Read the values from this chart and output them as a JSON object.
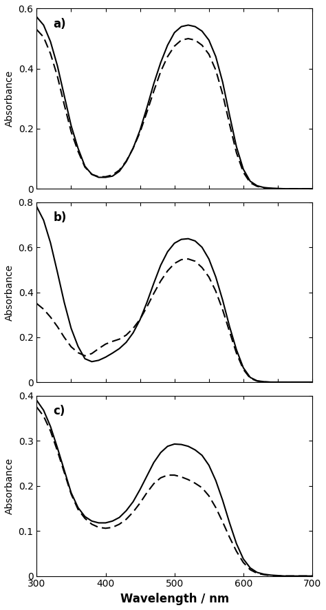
{
  "panels": [
    {
      "label": "a)",
      "ylim": [
        0,
        0.6
      ],
      "yticks": [
        0,
        0.2,
        0.4,
        0.6
      ],
      "solid": {
        "x": [
          300,
          310,
          320,
          330,
          340,
          350,
          360,
          370,
          380,
          390,
          400,
          410,
          420,
          430,
          440,
          450,
          460,
          470,
          480,
          490,
          500,
          510,
          520,
          530,
          540,
          550,
          560,
          570,
          580,
          590,
          600,
          610,
          620,
          630,
          640,
          650,
          660,
          670,
          680,
          690,
          700
        ],
        "y": [
          0.572,
          0.545,
          0.49,
          0.41,
          0.31,
          0.21,
          0.135,
          0.075,
          0.048,
          0.038,
          0.038,
          0.042,
          0.058,
          0.09,
          0.135,
          0.195,
          0.27,
          0.35,
          0.42,
          0.478,
          0.52,
          0.54,
          0.545,
          0.54,
          0.525,
          0.495,
          0.44,
          0.355,
          0.245,
          0.14,
          0.065,
          0.025,
          0.01,
          0.004,
          0.002,
          0.001,
          0.0,
          0.0,
          0.0,
          0.0,
          0.0
        ]
      },
      "dashed": {
        "x": [
          300,
          310,
          320,
          330,
          340,
          350,
          360,
          370,
          380,
          390,
          400,
          410,
          420,
          430,
          440,
          450,
          460,
          470,
          480,
          490,
          500,
          510,
          520,
          530,
          540,
          550,
          560,
          570,
          580,
          590,
          600,
          610,
          620,
          630,
          640,
          650,
          660,
          670,
          680,
          690,
          700
        ],
        "y": [
          0.53,
          0.505,
          0.45,
          0.375,
          0.28,
          0.19,
          0.125,
          0.072,
          0.048,
          0.04,
          0.04,
          0.046,
          0.062,
          0.092,
          0.135,
          0.188,
          0.255,
          0.325,
          0.39,
          0.44,
          0.475,
          0.495,
          0.5,
          0.495,
          0.478,
          0.448,
          0.395,
          0.315,
          0.215,
          0.12,
          0.055,
          0.02,
          0.008,
          0.003,
          0.001,
          0.0,
          0.0,
          0.0,
          0.0,
          0.0,
          0.0
        ]
      }
    },
    {
      "label": "b)",
      "ylim": [
        0,
        0.8
      ],
      "yticks": [
        0,
        0.2,
        0.4,
        0.6,
        0.8
      ],
      "solid": {
        "x": [
          300,
          310,
          320,
          330,
          340,
          350,
          360,
          370,
          380,
          390,
          400,
          410,
          420,
          430,
          440,
          450,
          460,
          470,
          480,
          490,
          500,
          510,
          520,
          530,
          540,
          550,
          560,
          570,
          580,
          590,
          600,
          610,
          620,
          630,
          640,
          650,
          660,
          670,
          680,
          690,
          700
        ],
        "y": [
          0.78,
          0.72,
          0.62,
          0.49,
          0.355,
          0.24,
          0.16,
          0.105,
          0.092,
          0.098,
          0.112,
          0.13,
          0.15,
          0.178,
          0.22,
          0.278,
          0.355,
          0.44,
          0.52,
          0.58,
          0.618,
          0.635,
          0.638,
          0.628,
          0.6,
          0.548,
          0.468,
          0.365,
          0.248,
          0.145,
          0.065,
          0.022,
          0.007,
          0.003,
          0.001,
          0.001,
          0.001,
          0.001,
          0.001,
          0.001,
          0.001
        ]
      },
      "dashed": {
        "x": [
          300,
          310,
          320,
          330,
          340,
          350,
          360,
          370,
          380,
          390,
          400,
          410,
          420,
          430,
          440,
          450,
          460,
          470,
          480,
          490,
          500,
          510,
          520,
          530,
          540,
          550,
          560,
          570,
          580,
          590,
          600,
          610,
          620,
          630,
          640,
          650,
          660,
          670,
          680,
          690,
          700
        ],
        "y": [
          0.35,
          0.325,
          0.29,
          0.248,
          0.2,
          0.158,
          0.132,
          0.118,
          0.128,
          0.15,
          0.17,
          0.182,
          0.192,
          0.21,
          0.24,
          0.28,
          0.335,
          0.395,
          0.45,
          0.495,
          0.528,
          0.545,
          0.548,
          0.538,
          0.51,
          0.468,
          0.405,
          0.322,
          0.225,
          0.13,
          0.058,
          0.018,
          0.006,
          0.002,
          0.001,
          0.001,
          0.001,
          0.001,
          0.001,
          0.001,
          0.001
        ]
      }
    },
    {
      "label": "c)",
      "ylim": [
        0,
        0.4
      ],
      "yticks": [
        0,
        0.1,
        0.2,
        0.3,
        0.4
      ],
      "solid": {
        "x": [
          300,
          310,
          320,
          330,
          340,
          350,
          360,
          370,
          380,
          390,
          400,
          410,
          420,
          430,
          440,
          450,
          460,
          470,
          480,
          490,
          500,
          510,
          520,
          530,
          540,
          550,
          560,
          570,
          580,
          590,
          600,
          610,
          620,
          630,
          640,
          650,
          660,
          670,
          680,
          690,
          700
        ],
        "y": [
          0.39,
          0.368,
          0.332,
          0.285,
          0.235,
          0.185,
          0.152,
          0.132,
          0.122,
          0.118,
          0.118,
          0.122,
          0.13,
          0.145,
          0.165,
          0.192,
          0.222,
          0.252,
          0.274,
          0.288,
          0.293,
          0.292,
          0.288,
          0.28,
          0.268,
          0.246,
          0.212,
          0.168,
          0.118,
          0.072,
          0.038,
          0.018,
          0.008,
          0.004,
          0.002,
          0.001,
          0.0,
          0.0,
          0.0,
          0.0,
          0.0
        ]
      },
      "dashed": {
        "x": [
          300,
          310,
          320,
          330,
          340,
          350,
          360,
          370,
          380,
          390,
          400,
          410,
          420,
          430,
          440,
          450,
          460,
          470,
          480,
          490,
          500,
          510,
          520,
          530,
          540,
          550,
          560,
          570,
          580,
          590,
          600,
          610,
          620,
          630,
          640,
          650,
          660,
          670,
          680,
          690,
          700
        ],
        "y": [
          0.375,
          0.355,
          0.322,
          0.278,
          0.23,
          0.182,
          0.148,
          0.128,
          0.115,
          0.108,
          0.106,
          0.108,
          0.115,
          0.126,
          0.142,
          0.162,
          0.185,
          0.205,
          0.218,
          0.224,
          0.224,
          0.22,
          0.214,
          0.206,
          0.196,
          0.178,
          0.152,
          0.12,
          0.086,
          0.055,
          0.03,
          0.014,
          0.006,
          0.003,
          0.001,
          0.0,
          0.0,
          0.0,
          0.0,
          0.0,
          0.0
        ]
      }
    }
  ],
  "xlim": [
    300,
    700
  ],
  "xticks": [
    300,
    400,
    500,
    600,
    700
  ],
  "xlabel": "Wavelength / nm",
  "ylabel": "Absorbance",
  "line_color": "#000000",
  "linewidth": 1.5,
  "dash_pattern": [
    6,
    3
  ]
}
